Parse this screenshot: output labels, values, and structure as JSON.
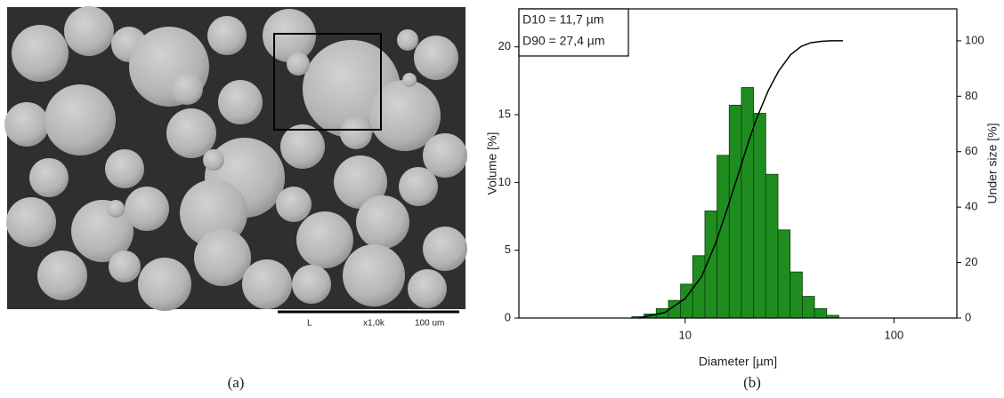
{
  "figure_a": {
    "caption": "(a)",
    "scale_bar": {
      "marker": "L",
      "magnification": "x1,0k",
      "length": "100 um"
    }
  },
  "figure_b": {
    "caption": "(b)"
  },
  "chart_data": {
    "type": "histogram",
    "xlabel": "Diameter [µm]",
    "ylabel": "Volume [%]",
    "y2label": "Under size [%]",
    "annotations": [
      "D10 = 11,7 µm",
      "D90 = 27,4 µm"
    ],
    "bins": [
      5.56,
      6.36,
      7.27,
      8.32,
      9.51,
      10.87,
      12.44,
      14.22,
      16.26,
      18.6,
      21.28,
      24.33,
      27.83,
      31.84,
      36.41,
      41.65,
      47.64,
      54.45
    ],
    "values": [
      0.1,
      0.3,
      0.7,
      1.3,
      2.5,
      4.6,
      7.9,
      12,
      15.7,
      17,
      15.1,
      10.6,
      6.5,
      3.4,
      1.6,
      0.7,
      0.2
    ],
    "color": "#1f8c1f",
    "cumulative": {
      "x": [
        6,
        8,
        10,
        12,
        14,
        16,
        18,
        20,
        22,
        25,
        28,
        32,
        36,
        40,
        45,
        50,
        57
      ],
      "values": [
        0,
        2,
        7,
        15,
        27,
        40,
        52,
        63,
        72,
        82,
        89,
        95,
        98,
        99.3,
        99.8,
        100,
        100
      ],
      "axis": "y2",
      "color": "#000000"
    },
    "xscale": "log",
    "xlim": [
      1.6,
      200
    ],
    "xticks": [
      10,
      100
    ],
    "ylim": [
      0,
      22.8
    ],
    "yticks": [
      0,
      5,
      10,
      15,
      20
    ],
    "y2lim": [
      0,
      111.5
    ],
    "y2ticks": [
      0,
      20,
      40,
      60,
      80,
      100
    ]
  }
}
